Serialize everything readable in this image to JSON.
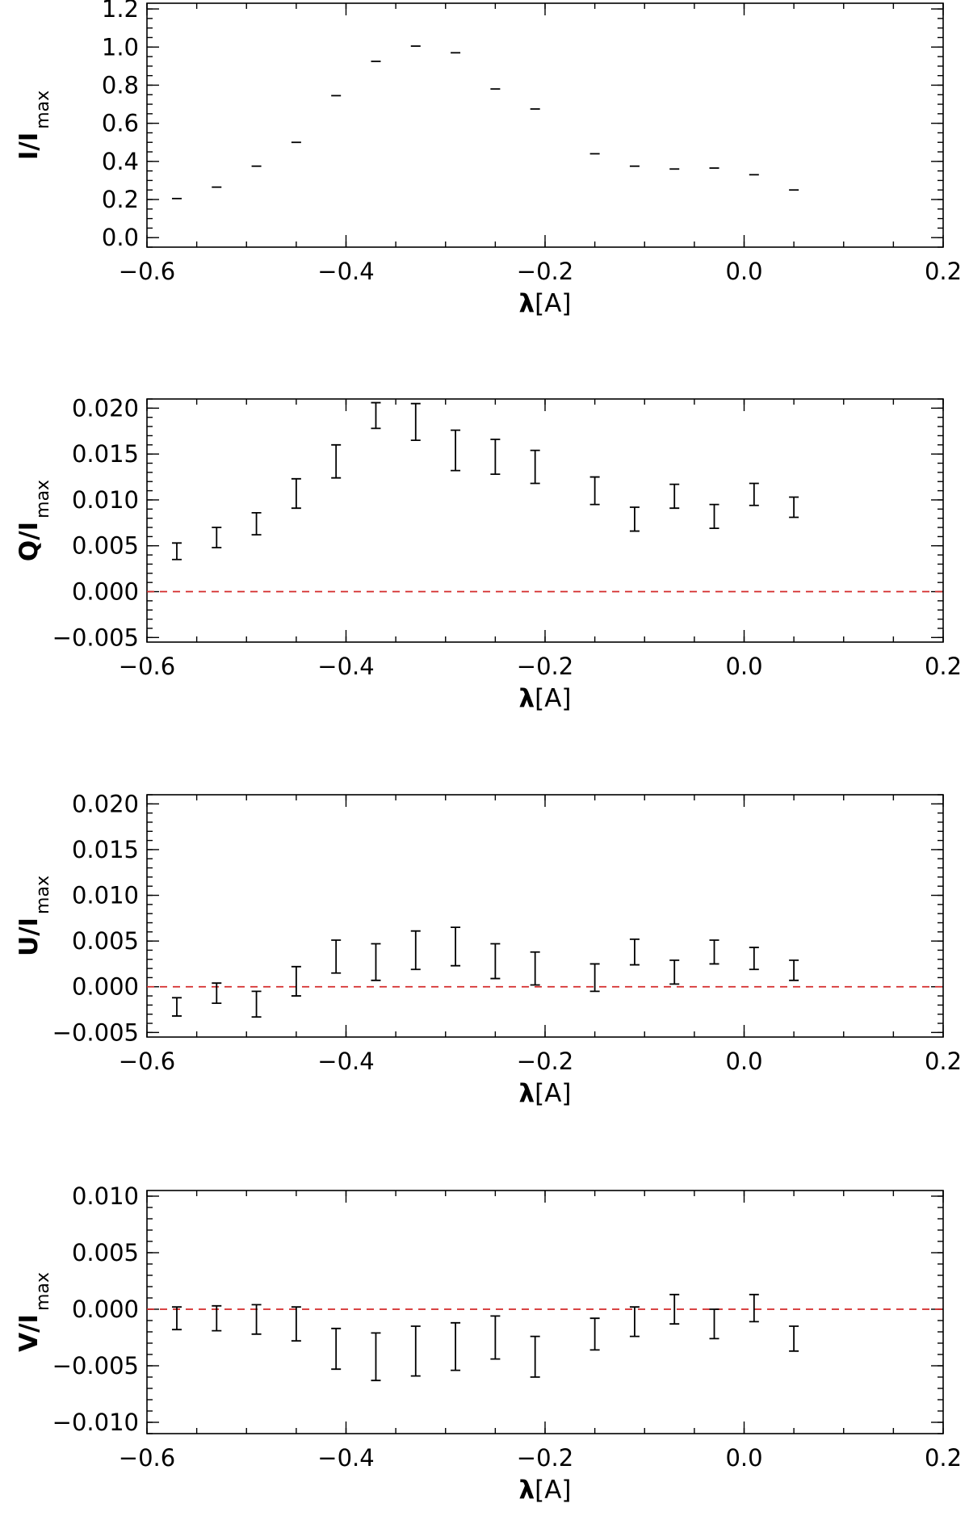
{
  "chart_data": [
    {
      "type": "scatter",
      "panel": "I",
      "ylabel_main": "I/I",
      "ylabel_sub": "max",
      "xlabel_main": "λ",
      "xlabel_unit": "[A]",
      "xlim": [
        -0.6,
        0.2
      ],
      "ylim": [
        -0.05,
        1.23
      ],
      "xticks": [
        -0.6,
        -0.4,
        -0.2,
        0.0,
        0.2
      ],
      "xtick_labels": [
        "−0.6",
        "−0.4",
        "−0.2",
        "0.0",
        "0.2"
      ],
      "yticks": [
        0.0,
        0.2,
        0.4,
        0.6,
        0.8,
        1.0,
        1.2
      ],
      "ytick_labels": [
        "0.0",
        "0.2",
        "0.4",
        "0.6",
        "0.8",
        "1.0",
        "1.2"
      ],
      "x_minor_step": 0.05,
      "y_minor_step": 0.05,
      "reference_line": null,
      "series": [
        {
          "x": [
            -0.57,
            -0.53,
            -0.49,
            -0.45,
            -0.41,
            -0.37,
            -0.33,
            -0.29,
            -0.25,
            -0.21,
            -0.15,
            -0.11,
            -0.07,
            -0.03,
            0.01,
            0.05
          ],
          "y": [
            0.205,
            0.265,
            0.375,
            0.5,
            0.745,
            0.925,
            1.005,
            0.97,
            0.78,
            0.675,
            0.44,
            0.375,
            0.36,
            0.365,
            0.33,
            0.25
          ],
          "err": [
            0.0,
            0.0,
            0.0,
            0.0,
            0.0,
            0.0,
            0.0,
            0.0,
            0.0,
            0.0,
            0.0,
            0.0,
            0.0,
            0.0,
            0.0,
            0.0
          ]
        }
      ]
    },
    {
      "type": "scatter",
      "panel": "Q",
      "ylabel_main": "Q/I",
      "ylabel_sub": "max",
      "xlabel_main": "λ",
      "xlabel_unit": "[A]",
      "xlim": [
        -0.6,
        0.2
      ],
      "ylim": [
        -0.0055,
        0.021
      ],
      "xticks": [
        -0.6,
        -0.4,
        -0.2,
        0.0,
        0.2
      ],
      "xtick_labels": [
        "−0.6",
        "−0.4",
        "−0.2",
        "0.0",
        "0.2"
      ],
      "yticks": [
        -0.005,
        0.0,
        0.005,
        0.01,
        0.015,
        0.02
      ],
      "ytick_labels": [
        "−0.005",
        "0.000",
        "0.005",
        "0.010",
        "0.015",
        "0.020"
      ],
      "x_minor_step": 0.05,
      "y_minor_step": 0.001,
      "reference_line": 0.0,
      "series": [
        {
          "x": [
            -0.57,
            -0.53,
            -0.49,
            -0.45,
            -0.41,
            -0.37,
            -0.33,
            -0.29,
            -0.25,
            -0.21,
            -0.15,
            -0.11,
            -0.07,
            -0.03,
            0.01,
            0.05
          ],
          "y": [
            0.0044,
            0.0059,
            0.0074,
            0.0107,
            0.0142,
            0.0192,
            0.0185,
            0.0154,
            0.0147,
            0.0136,
            0.011,
            0.0079,
            0.0104,
            0.0082,
            0.0106,
            0.0092
          ],
          "err": [
            0.0009,
            0.0011,
            0.0012,
            0.0016,
            0.0018,
            0.0014,
            0.002,
            0.0022,
            0.0019,
            0.0018,
            0.0015,
            0.0013,
            0.0013,
            0.0013,
            0.0012,
            0.0011
          ]
        }
      ]
    },
    {
      "type": "scatter",
      "panel": "U",
      "ylabel_main": "U/I",
      "ylabel_sub": "max",
      "xlabel_main": "λ",
      "xlabel_unit": "[A]",
      "xlim": [
        -0.6,
        0.2
      ],
      "ylim": [
        -0.0055,
        0.021
      ],
      "xticks": [
        -0.6,
        -0.4,
        -0.2,
        0.0,
        0.2
      ],
      "xtick_labels": [
        "−0.6",
        "−0.4",
        "−0.2",
        "0.0",
        "0.2"
      ],
      "yticks": [
        -0.005,
        0.0,
        0.005,
        0.01,
        0.015,
        0.02
      ],
      "ytick_labels": [
        "−0.005",
        "0.000",
        "0.005",
        "0.010",
        "0.015",
        "0.020"
      ],
      "x_minor_step": 0.05,
      "y_minor_step": 0.001,
      "reference_line": 0.0,
      "series": [
        {
          "x": [
            -0.57,
            -0.53,
            -0.49,
            -0.45,
            -0.41,
            -0.37,
            -0.33,
            -0.29,
            -0.25,
            -0.21,
            -0.15,
            -0.11,
            -0.07,
            -0.03,
            0.01,
            0.05
          ],
          "y": [
            -0.0022,
            -0.0007,
            -0.0019,
            0.0006,
            0.0033,
            0.0027,
            0.004,
            0.0044,
            0.0028,
            0.002,
            0.001,
            0.0038,
            0.0016,
            0.0038,
            0.0031,
            0.0018
          ],
          "err": [
            0.001,
            0.0011,
            0.0014,
            0.0016,
            0.0018,
            0.002,
            0.0021,
            0.0021,
            0.0019,
            0.0018,
            0.0015,
            0.0014,
            0.0013,
            0.0013,
            0.0012,
            0.0011
          ]
        }
      ]
    },
    {
      "type": "scatter",
      "panel": "V",
      "ylabel_main": "V/I",
      "ylabel_sub": "max",
      "xlabel_main": "λ",
      "xlabel_unit": "[A]",
      "xlim": [
        -0.6,
        0.2
      ],
      "ylim": [
        -0.011,
        0.0105
      ],
      "xticks": [
        -0.6,
        -0.4,
        -0.2,
        0.0,
        0.2
      ],
      "xtick_labels": [
        "−0.6",
        "−0.4",
        "−0.2",
        "0.0",
        "0.2"
      ],
      "yticks": [
        -0.01,
        -0.005,
        0.0,
        0.005,
        0.01
      ],
      "ytick_labels": [
        "−0.010",
        "−0.005",
        "0.000",
        "0.005",
        "0.010"
      ],
      "x_minor_step": 0.05,
      "y_minor_step": 0.001,
      "reference_line": 0.0,
      "series": [
        {
          "x": [
            -0.57,
            -0.53,
            -0.49,
            -0.45,
            -0.41,
            -0.37,
            -0.33,
            -0.29,
            -0.25,
            -0.21,
            -0.15,
            -0.11,
            -0.07,
            -0.03,
            0.01,
            0.05
          ],
          "y": [
            -0.0008,
            -0.0008,
            -0.0009,
            -0.0013,
            -0.0035,
            -0.0042,
            -0.0037,
            -0.0033,
            -0.0025,
            -0.0042,
            -0.0022,
            -0.0011,
            0.0,
            -0.0013,
            0.0001,
            -0.0026
          ],
          "err": [
            0.001,
            0.0011,
            0.0013,
            0.0015,
            0.0018,
            0.0021,
            0.0022,
            0.0021,
            0.0019,
            0.0018,
            0.0014,
            0.0013,
            0.0013,
            0.0013,
            0.0012,
            0.0011
          ]
        }
      ]
    }
  ]
}
